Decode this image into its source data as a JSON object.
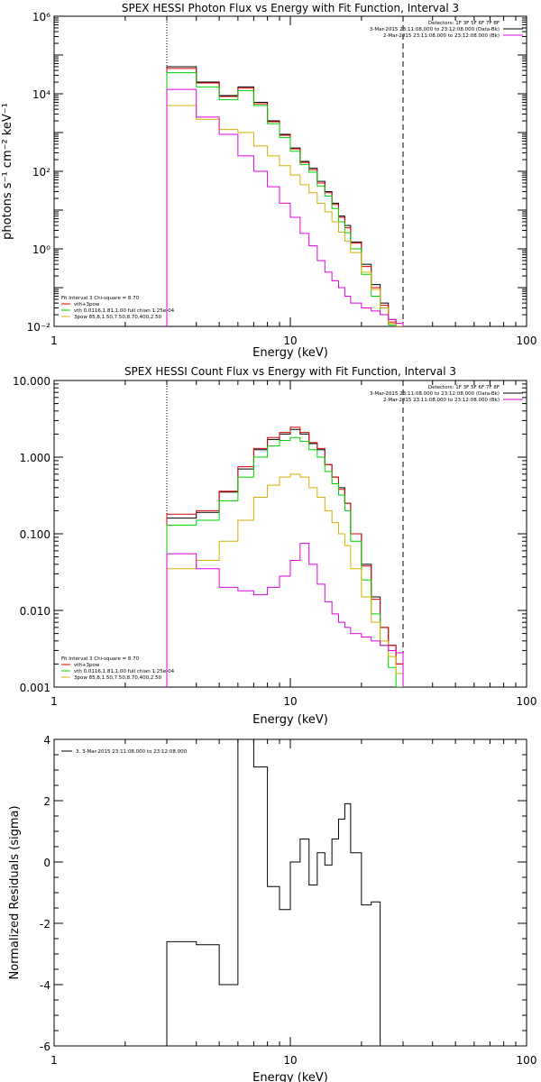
{
  "chart_data": [
    {
      "type": "line",
      "title": "SPEX HESSI Photon Flux vs Energy with Fit Function, Interval 3",
      "xlabel": "Energy (keV)",
      "ylabel": "photons s⁻¹ cm⁻² keV⁻¹",
      "xscale": "log",
      "yscale": "log",
      "xlim": [
        1,
        100
      ],
      "ylim": [
        0.01,
        1000000
      ],
      "xticks": [
        {
          "v": 1,
          "label": "1"
        },
        {
          "v": 10,
          "label": "10"
        },
        {
          "v": 100,
          "label": "100"
        }
      ],
      "yticks": [
        {
          "v": 0.01,
          "label": "10⁻²"
        },
        {
          "v": 1,
          "label": "10⁰"
        },
        {
          "v": 100,
          "label": "10²"
        },
        {
          "v": 10000,
          "label": "10⁴"
        },
        {
          "v": 1000000,
          "label": "10⁶"
        }
      ],
      "vlines": [
        {
          "x": 3,
          "style": "dotted"
        },
        {
          "x": 30,
          "style": "dashed"
        }
      ],
      "legend_top": {
        "header": "Detectors: 1F 3F 5F 6F 7F 8F",
        "entries": [
          {
            "text": "3-Mar-2015 23:11:08.000 to 23:12:08.000 (Data-Bk)",
            "color": "#000000"
          },
          {
            "text": "2-Mar-2015 23:11:08.000 to 23:12:08.000 (Bk)",
            "color": "#e000e0"
          }
        ]
      },
      "legend_bottom": {
        "header": "Fit Interval 3   Chi-square = 8.70",
        "entries": [
          {
            "text": "vth+3pow",
            "color": "#e00000"
          },
          {
            "text": "vth 0.0116,1.81,1.00  full chian 1.25e-04",
            "color": "#00d000"
          },
          {
            "text": "3pow 85.8,1.50,7.50,8.70,400,2.50",
            "color": "#d4b000"
          }
        ]
      },
      "edges": [
        3,
        4,
        5,
        6,
        7,
        8,
        9,
        10,
        11,
        12,
        13,
        14,
        15,
        16,
        17,
        18,
        20,
        22,
        24,
        26,
        28,
        30
      ],
      "series": [
        {
          "name": "data",
          "color": "#000000",
          "values": [
            50000,
            20000,
            9000,
            15000,
            6000,
            2000,
            900,
            400,
            180,
            120,
            55,
            30,
            15,
            7,
            4,
            1.5,
            0.4,
            0.12,
            0.04,
            0.015,
            0.008
          ]
        },
        {
          "name": "vth+3pow",
          "color": "#e00000",
          "values": [
            45000,
            19000,
            8500,
            14000,
            5500,
            1900,
            850,
            380,
            170,
            110,
            50,
            28,
            14,
            6.5,
            3.5,
            1.4,
            0.35,
            0.1,
            0.035,
            0.013,
            0.007
          ]
        },
        {
          "name": "vth",
          "color": "#00d000",
          "values": [
            35000,
            15000,
            7000,
            12000,
            5000,
            1700,
            750,
            330,
            150,
            95,
            42,
            23,
            11,
            5,
            2.6,
            1,
            0.22,
            0.06,
            0.02,
            0.011,
            0.006
          ]
        },
        {
          "name": "3pow",
          "color": "#d4b000",
          "values": [
            5000,
            2200,
            1200,
            1000,
            450,
            250,
            140,
            80,
            45,
            28,
            15,
            9,
            5,
            2.7,
            1.6,
            0.8,
            0.25,
            0.09,
            0.03,
            0.012,
            0.008
          ]
        },
        {
          "name": "Bk",
          "color": "#e000e0",
          "values": [
            13000,
            2500,
            900,
            250,
            100,
            40,
            15,
            6.5,
            2.5,
            1.2,
            0.5,
            0.25,
            0.15,
            0.1,
            0.06,
            0.04,
            0.03,
            0.025,
            0.02,
            0.015,
            0.012
          ]
        }
      ]
    },
    {
      "type": "line",
      "title": "SPEX HESSI Count Flux vs Energy with Fit Function, Interval 3",
      "xlabel": "Energy (keV)",
      "ylabel": "",
      "xscale": "log",
      "yscale": "log",
      "xlim": [
        1,
        100
      ],
      "ylim": [
        0.001,
        10
      ],
      "xticks": [
        {
          "v": 1,
          "label": "1"
        },
        {
          "v": 10,
          "label": "10"
        },
        {
          "v": 100,
          "label": "100"
        }
      ],
      "yticks": [
        {
          "v": 0.001,
          "label": "0.001"
        },
        {
          "v": 0.01,
          "label": "0.010"
        },
        {
          "v": 0.1,
          "label": "0.100"
        },
        {
          "v": 1,
          "label": "1.000"
        },
        {
          "v": 10,
          "label": "10.000"
        }
      ],
      "vlines": [
        {
          "x": 3,
          "style": "dotted"
        },
        {
          "x": 30,
          "style": "dashed"
        }
      ],
      "legend_top": {
        "header": "Detectors: 1F 3F 5F 6F 7F 8F",
        "entries": [
          {
            "text": "3-Mar-2015 23:11:08.000 to 23:12:08.000 (Data-Bk)",
            "color": "#000000"
          },
          {
            "text": "2-Mar-2015 23:11:08.000 to 23:12:08.000 (Bk)",
            "color": "#e000e0"
          }
        ]
      },
      "legend_bottom": {
        "header": "Fit Interval 3   Chi-square = 8.70",
        "entries": [
          {
            "text": "vth+3pow",
            "color": "#e00000"
          },
          {
            "text": "vth 0.0116,1.81,1.00  full chian 1.25e-04",
            "color": "#00d000"
          },
          {
            "text": "3pow 85.8,1.50,7.50,8.70,400,2.50",
            "color": "#d4b000"
          }
        ]
      },
      "edges": [
        3,
        4,
        5,
        6,
        7,
        8,
        9,
        10,
        11,
        12,
        13,
        14,
        15,
        16,
        17,
        18,
        20,
        22,
        24,
        26,
        28,
        30
      ],
      "series": [
        {
          "name": "data",
          "color": "#000000",
          "values": [
            0.16,
            0.19,
            0.35,
            0.7,
            1.25,
            1.7,
            2.0,
            2.3,
            2.0,
            1.5,
            1.25,
            0.8,
            0.55,
            0.4,
            0.25,
            0.1,
            0.04,
            0.015,
            0.006,
            0.0035,
            0.002
          ]
        },
        {
          "name": "vth+3pow",
          "color": "#e00000",
          "values": [
            0.18,
            0.2,
            0.36,
            0.75,
            1.3,
            1.8,
            2.1,
            2.45,
            2.1,
            1.55,
            1.3,
            0.8,
            0.55,
            0.38,
            0.25,
            0.1,
            0.038,
            0.014,
            0.006,
            0.0035,
            0.002
          ]
        },
        {
          "name": "vth",
          "color": "#00d000",
          "values": [
            0.13,
            0.15,
            0.27,
            0.55,
            1.0,
            1.4,
            1.65,
            1.8,
            1.6,
            1.25,
            1.0,
            0.65,
            0.45,
            0.32,
            0.2,
            0.08,
            0.025,
            0.009,
            0.0035,
            0.0018,
            0.001
          ]
        },
        {
          "name": "3pow",
          "color": "#d4b000",
          "values": [
            0.035,
            0.045,
            0.08,
            0.15,
            0.3,
            0.43,
            0.55,
            0.6,
            0.55,
            0.4,
            0.3,
            0.2,
            0.14,
            0.1,
            0.07,
            0.035,
            0.015,
            0.007,
            0.004,
            0.0025,
            0.0015
          ]
        },
        {
          "name": "Bk",
          "color": "#e000e0",
          "values": [
            0.055,
            0.035,
            0.02,
            0.018,
            0.016,
            0.02,
            0.028,
            0.045,
            0.075,
            0.04,
            0.022,
            0.013,
            0.009,
            0.007,
            0.006,
            0.005,
            0.0045,
            0.004,
            0.0035,
            0.003,
            0.0028
          ]
        }
      ]
    },
    {
      "type": "line",
      "title": "",
      "xlabel": "Energy (keV)",
      "ylabel": "Normalized Residuals (sigma)",
      "xscale": "log",
      "yscale": "linear",
      "xlim": [
        1,
        100
      ],
      "ylim": [
        -6,
        4
      ],
      "xticks": [
        {
          "v": 1,
          "label": "1"
        },
        {
          "v": 10,
          "label": "10"
        },
        {
          "v": 100,
          "label": "100"
        }
      ],
      "yticks": [
        {
          "v": -6,
          "label": "-6"
        },
        {
          "v": -4,
          "label": "-4"
        },
        {
          "v": -2,
          "label": "-2"
        },
        {
          "v": 0,
          "label": "0"
        },
        {
          "v": 2,
          "label": "2"
        },
        {
          "v": 4,
          "label": "4"
        }
      ],
      "legend": "3.  3-Mar-2015 23:11:08.000 to 23:12:08.000",
      "edges": [
        3,
        4,
        5,
        6,
        7,
        8,
        9,
        10,
        11,
        12,
        13,
        14,
        15,
        16,
        17,
        18,
        20,
        22,
        24,
        26,
        28,
        30
      ],
      "series": [
        {
          "name": "residuals",
          "color": "#000000",
          "values": [
            -2.6,
            -2.7,
            -4.0,
            4.0,
            3.1,
            -0.8,
            -1.55,
            0.0,
            0.75,
            -0.75,
            0.3,
            -0.1,
            0.75,
            1.4,
            1.9,
            0.3,
            -1.4,
            -1.3,
            -6.0,
            -6.0,
            -6.0
          ]
        }
      ]
    }
  ]
}
